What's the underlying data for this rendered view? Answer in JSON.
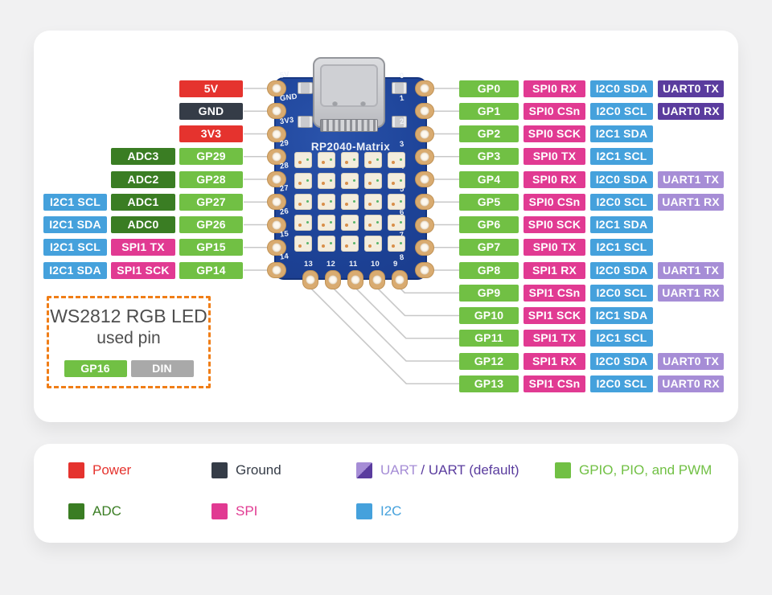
{
  "board": {
    "name": "RP2040-Matrix",
    "left_silk": [
      "5V",
      "GND",
      "3V3",
      "29",
      "28",
      "27",
      "26",
      "15",
      "14"
    ],
    "right_silk": [
      "0",
      "1",
      "2",
      "3",
      "4",
      "5",
      "6",
      "7",
      "8"
    ],
    "bottom_silk": [
      "13",
      "12",
      "11",
      "10",
      "9"
    ],
    "led_matrix": {
      "rows": 5,
      "cols": 5
    }
  },
  "colors": {
    "power": "#e5332e",
    "ground": "#353c47",
    "gpio": "#71c044",
    "adc": "#3a7d23",
    "spi": "#e13a92",
    "i2c": "#45a1dc",
    "uart": "#a68dd6",
    "uart_default": "#5a3c9e",
    "din": "#a9a9a9",
    "note_border": "#f07e17",
    "board_blue": "#1e4499",
    "line": "#c8c8c8"
  },
  "left_rows": [
    {
      "cells": [
        {
          "label": "5V",
          "type": "power"
        }
      ]
    },
    {
      "cells": [
        {
          "label": "GND",
          "type": "ground"
        }
      ]
    },
    {
      "cells": [
        {
          "label": "3V3",
          "type": "power"
        }
      ]
    },
    {
      "cells": [
        {
          "label": "ADC3",
          "type": "adc"
        },
        {
          "label": "GP29",
          "type": "gpio"
        }
      ]
    },
    {
      "cells": [
        {
          "label": "ADC2",
          "type": "adc"
        },
        {
          "label": "GP28",
          "type": "gpio"
        }
      ]
    },
    {
      "cells": [
        {
          "label": "I2C1 SCL",
          "type": "i2c"
        },
        {
          "label": "ADC1",
          "type": "adc"
        },
        {
          "label": "GP27",
          "type": "gpio"
        }
      ]
    },
    {
      "cells": [
        {
          "label": "I2C1 SDA",
          "type": "i2c"
        },
        {
          "label": "ADC0",
          "type": "adc"
        },
        {
          "label": "GP26",
          "type": "gpio"
        }
      ]
    },
    {
      "cells": [
        {
          "label": "I2C1 SCL",
          "type": "i2c"
        },
        {
          "label": "SPI1 TX",
          "type": "spi"
        },
        {
          "label": "GP15",
          "type": "gpio"
        }
      ]
    },
    {
      "cells": [
        {
          "label": "I2C1 SDA",
          "type": "i2c"
        },
        {
          "label": "SPI1 SCK",
          "type": "spi"
        },
        {
          "label": "GP14",
          "type": "gpio"
        }
      ]
    }
  ],
  "right_rows": [
    {
      "cells": [
        {
          "label": "GP0",
          "type": "gpio"
        },
        {
          "label": "SPI0 RX",
          "type": "spi"
        },
        {
          "label": "I2C0 SDA",
          "type": "i2c"
        },
        {
          "label": "UART0 TX",
          "type": "uart_default"
        }
      ]
    },
    {
      "cells": [
        {
          "label": "GP1",
          "type": "gpio"
        },
        {
          "label": "SPI0 CSn",
          "type": "spi"
        },
        {
          "label": "I2C0 SCL",
          "type": "i2c"
        },
        {
          "label": "UART0 RX",
          "type": "uart_default"
        }
      ]
    },
    {
      "cells": [
        {
          "label": "GP2",
          "type": "gpio"
        },
        {
          "label": "SPI0 SCK",
          "type": "spi"
        },
        {
          "label": "I2C1 SDA",
          "type": "i2c"
        }
      ]
    },
    {
      "cells": [
        {
          "label": "GP3",
          "type": "gpio"
        },
        {
          "label": "SPI0 TX",
          "type": "spi"
        },
        {
          "label": "I2C1 SCL",
          "type": "i2c"
        }
      ]
    },
    {
      "cells": [
        {
          "label": "GP4",
          "type": "gpio"
        },
        {
          "label": "SPI0 RX",
          "type": "spi"
        },
        {
          "label": "I2C0 SDA",
          "type": "i2c"
        },
        {
          "label": "UART1 TX",
          "type": "uart"
        }
      ]
    },
    {
      "cells": [
        {
          "label": "GP5",
          "type": "gpio"
        },
        {
          "label": "SPI0 CSn",
          "type": "spi"
        },
        {
          "label": "I2C0 SCL",
          "type": "i2c"
        },
        {
          "label": "UART1 RX",
          "type": "uart"
        }
      ]
    },
    {
      "cells": [
        {
          "label": "GP6",
          "type": "gpio"
        },
        {
          "label": "SPI0 SCK",
          "type": "spi"
        },
        {
          "label": "I2C1 SDA",
          "type": "i2c"
        }
      ]
    },
    {
      "cells": [
        {
          "label": "GP7",
          "type": "gpio"
        },
        {
          "label": "SPI0 TX",
          "type": "spi"
        },
        {
          "label": "I2C1 SCL",
          "type": "i2c"
        }
      ]
    },
    {
      "cells": [
        {
          "label": "GP8",
          "type": "gpio"
        },
        {
          "label": "SPI1 RX",
          "type": "spi"
        },
        {
          "label": "I2C0 SDA",
          "type": "i2c"
        },
        {
          "label": "UART1 TX",
          "type": "uart"
        }
      ]
    },
    {
      "cells": [
        {
          "label": "GP9",
          "type": "gpio"
        },
        {
          "label": "SPI1 CSn",
          "type": "spi"
        },
        {
          "label": "I2C0 SCL",
          "type": "i2c"
        },
        {
          "label": "UART1 RX",
          "type": "uart"
        }
      ]
    },
    {
      "cells": [
        {
          "label": "GP10",
          "type": "gpio"
        },
        {
          "label": "SPI1 SCK",
          "type": "spi"
        },
        {
          "label": "I2C1 SDA",
          "type": "i2c"
        }
      ]
    },
    {
      "cells": [
        {
          "label": "GP11",
          "type": "gpio"
        },
        {
          "label": "SPI1 TX",
          "type": "spi"
        },
        {
          "label": "I2C1 SCL",
          "type": "i2c"
        }
      ]
    },
    {
      "cells": [
        {
          "label": "GP12",
          "type": "gpio"
        },
        {
          "label": "SPI1 RX",
          "type": "spi"
        },
        {
          "label": "I2C0 SDA",
          "type": "i2c"
        },
        {
          "label": "UART0 TX",
          "type": "uart"
        }
      ]
    },
    {
      "cells": [
        {
          "label": "GP13",
          "type": "gpio"
        },
        {
          "label": "SPI1 CSn",
          "type": "spi"
        },
        {
          "label": "I2C0 SCL",
          "type": "i2c"
        },
        {
          "label": "UART0 RX",
          "type": "uart"
        }
      ]
    }
  ],
  "ws2812": {
    "title_line1": "WS2812 RGB LED",
    "title_line2": "used pin",
    "pins": [
      {
        "label": "GP16",
        "type": "gpio"
      },
      {
        "label": "DIN",
        "type": "din"
      }
    ]
  },
  "legend": {
    "rows": [
      [
        {
          "label": "Power",
          "type": "power"
        },
        {
          "label": "Ground",
          "type": "ground"
        },
        {
          "type": "uart_split",
          "parts": [
            {
              "text": "UART",
              "type": "uart"
            },
            {
              "text": " / ",
              "type": "uart_default"
            },
            {
              "text": "UART (default)",
              "type": "uart_default"
            }
          ]
        },
        {
          "label": "GPIO, PIO, and PWM",
          "type": "gpio"
        }
      ],
      [
        {
          "label": "ADC",
          "type": "adc"
        },
        {
          "label": "SPI",
          "type": "spi"
        },
        {
          "label": "I2C",
          "type": "i2c"
        }
      ]
    ]
  }
}
